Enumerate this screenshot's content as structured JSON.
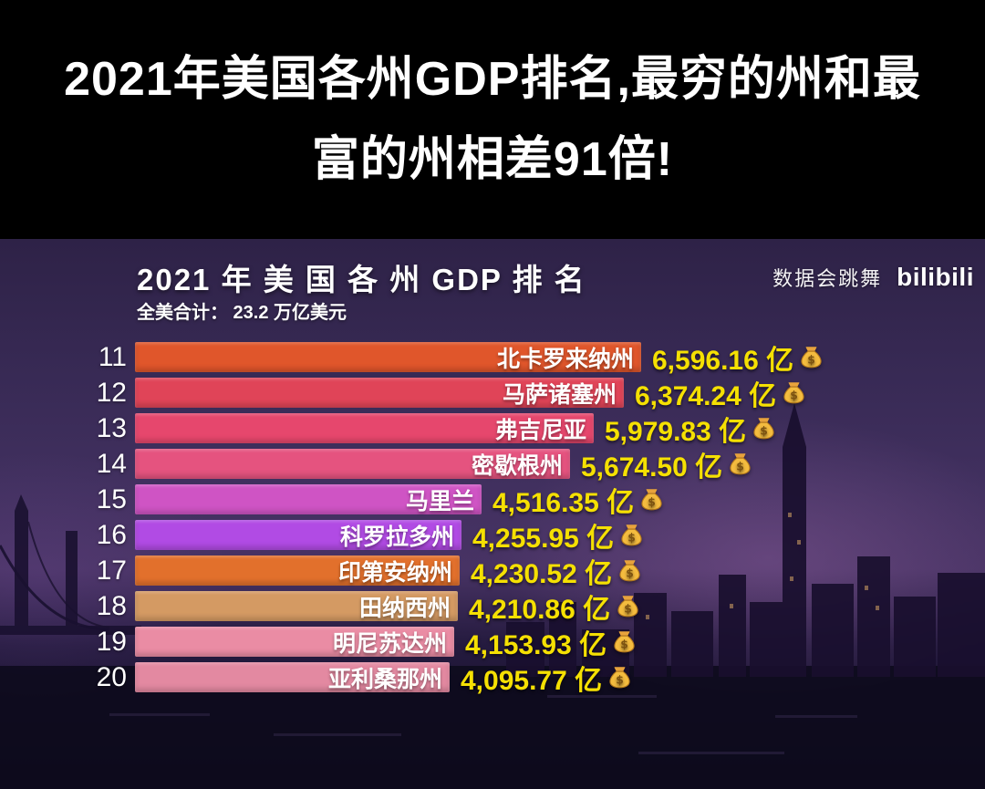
{
  "headline": {
    "line1": "2021年美国各州GDP排名,最穷的州和最",
    "line2": "富的州相差91倍!"
  },
  "video": {
    "watermark_text": "数据会跳舞",
    "watermark_logo": "bilibili"
  },
  "chart_data": {
    "type": "bar",
    "orientation": "horizontal",
    "title": "2021 年 美 国 各 州 GDP 排 名",
    "subtitle": "全美合计： 23.2 万亿美元",
    "unit": "亿",
    "value_suffix_icon": "money-bag",
    "axis_hidden": true,
    "max_value": 6596.16,
    "rows": [
      {
        "rank": 11,
        "state": "北卡罗来纳州",
        "value": 6596.16,
        "value_label": "6,596.16",
        "color": "#e0562b"
      },
      {
        "rank": 12,
        "state": "马萨诸塞州",
        "value": 6374.24,
        "value_label": "6,374.24",
        "color": "#e04458"
      },
      {
        "rank": 13,
        "state": "弗吉尼亚",
        "value": 5979.83,
        "value_label": "5,979.83",
        "color": "#e6476d"
      },
      {
        "rank": 14,
        "state": "密歇根州",
        "value": 5674.5,
        "value_label": "5,674.50",
        "color": "#e5537f"
      },
      {
        "rank": 15,
        "state": "马里兰",
        "value": 4516.35,
        "value_label": "4,516.35",
        "color": "#cf54c4"
      },
      {
        "rank": 16,
        "state": "科罗拉多州",
        "value": 4255.95,
        "value_label": "4,255.95",
        "color": "#b14be4"
      },
      {
        "rank": 17,
        "state": "印第安纳州",
        "value": 4230.52,
        "value_label": "4,230.52",
        "color": "#e2702c"
      },
      {
        "rank": 18,
        "state": "田纳西州",
        "value": 4210.86,
        "value_label": "4,210.86",
        "color": "#d49a63"
      },
      {
        "rank": 19,
        "state": "明尼苏达州",
        "value": 4153.93,
        "value_label": "4,153.93",
        "color": "#ea8ca4"
      },
      {
        "rank": 20,
        "state": "亚利桑那州",
        "value": 4095.77,
        "value_label": "4,095.77",
        "color": "#e389a1"
      }
    ]
  }
}
